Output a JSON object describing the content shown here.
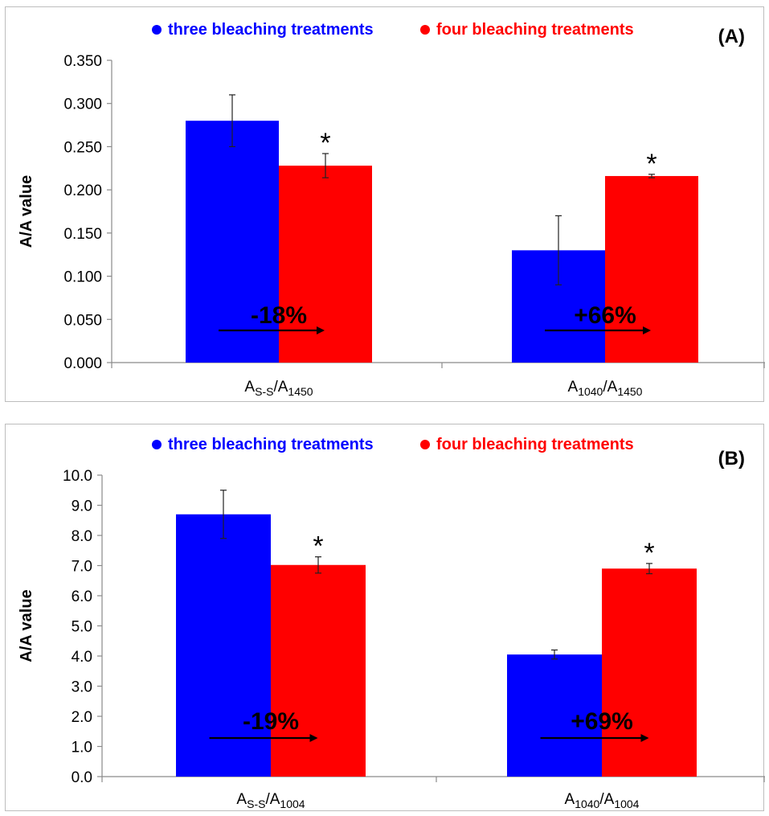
{
  "chart_data": [
    {
      "panel_label": "(A)",
      "type": "bar",
      "ylabel": "A/A value",
      "ylim": [
        0,
        0.35
      ],
      "ytick_step": 0.05,
      "ytick_labels": [
        "0.000",
        "0.050",
        "0.100",
        "0.150",
        "0.200",
        "0.250",
        "0.300",
        "0.350"
      ],
      "categories": [
        {
          "main": "A",
          "sub1": "S-S",
          "mid": "/A",
          "sub2": "1450"
        },
        {
          "main": "A",
          "sub1": "1040",
          "mid": "/A",
          "sub2": "1450"
        }
      ],
      "series": [
        {
          "name": "three bleaching treatments",
          "color": "#0000ff",
          "values": [
            0.28,
            0.13
          ],
          "errors": [
            0.03,
            0.04
          ]
        },
        {
          "name": "four bleaching treatments",
          "color": "#ff0000",
          "values": [
            0.228,
            0.216
          ],
          "errors": [
            0.014,
            0.002
          ]
        }
      ],
      "significance": [
        "*",
        "*"
      ],
      "annotations": [
        "-18%",
        "+66%"
      ],
      "legend_position": "top",
      "grid": false
    },
    {
      "panel_label": "(B)",
      "type": "bar",
      "ylabel": "A/A value",
      "ylim": [
        0,
        10
      ],
      "ytick_step": 1,
      "ytick_labels": [
        "0.0",
        "1.0",
        "2.0",
        "3.0",
        "4.0",
        "5.0",
        "6.0",
        "7.0",
        "8.0",
        "9.0",
        "10.0"
      ],
      "categories": [
        {
          "main": "A",
          "sub1": "S-S",
          "mid": "/A",
          "sub2": "1004"
        },
        {
          "main": "A",
          "sub1": "1040",
          "mid": "/A",
          "sub2": "1004"
        }
      ],
      "series": [
        {
          "name": "three bleaching treatments",
          "color": "#0000ff",
          "values": [
            8.7,
            4.05
          ],
          "errors": [
            0.8,
            0.15
          ]
        },
        {
          "name": "four bleaching treatments",
          "color": "#ff0000",
          "values": [
            7.02,
            6.9
          ],
          "errors": [
            0.27,
            0.17
          ]
        }
      ],
      "significance": [
        "*",
        "*"
      ],
      "annotations": [
        "-19%",
        "+69%"
      ],
      "legend_position": "top",
      "grid": false
    }
  ]
}
